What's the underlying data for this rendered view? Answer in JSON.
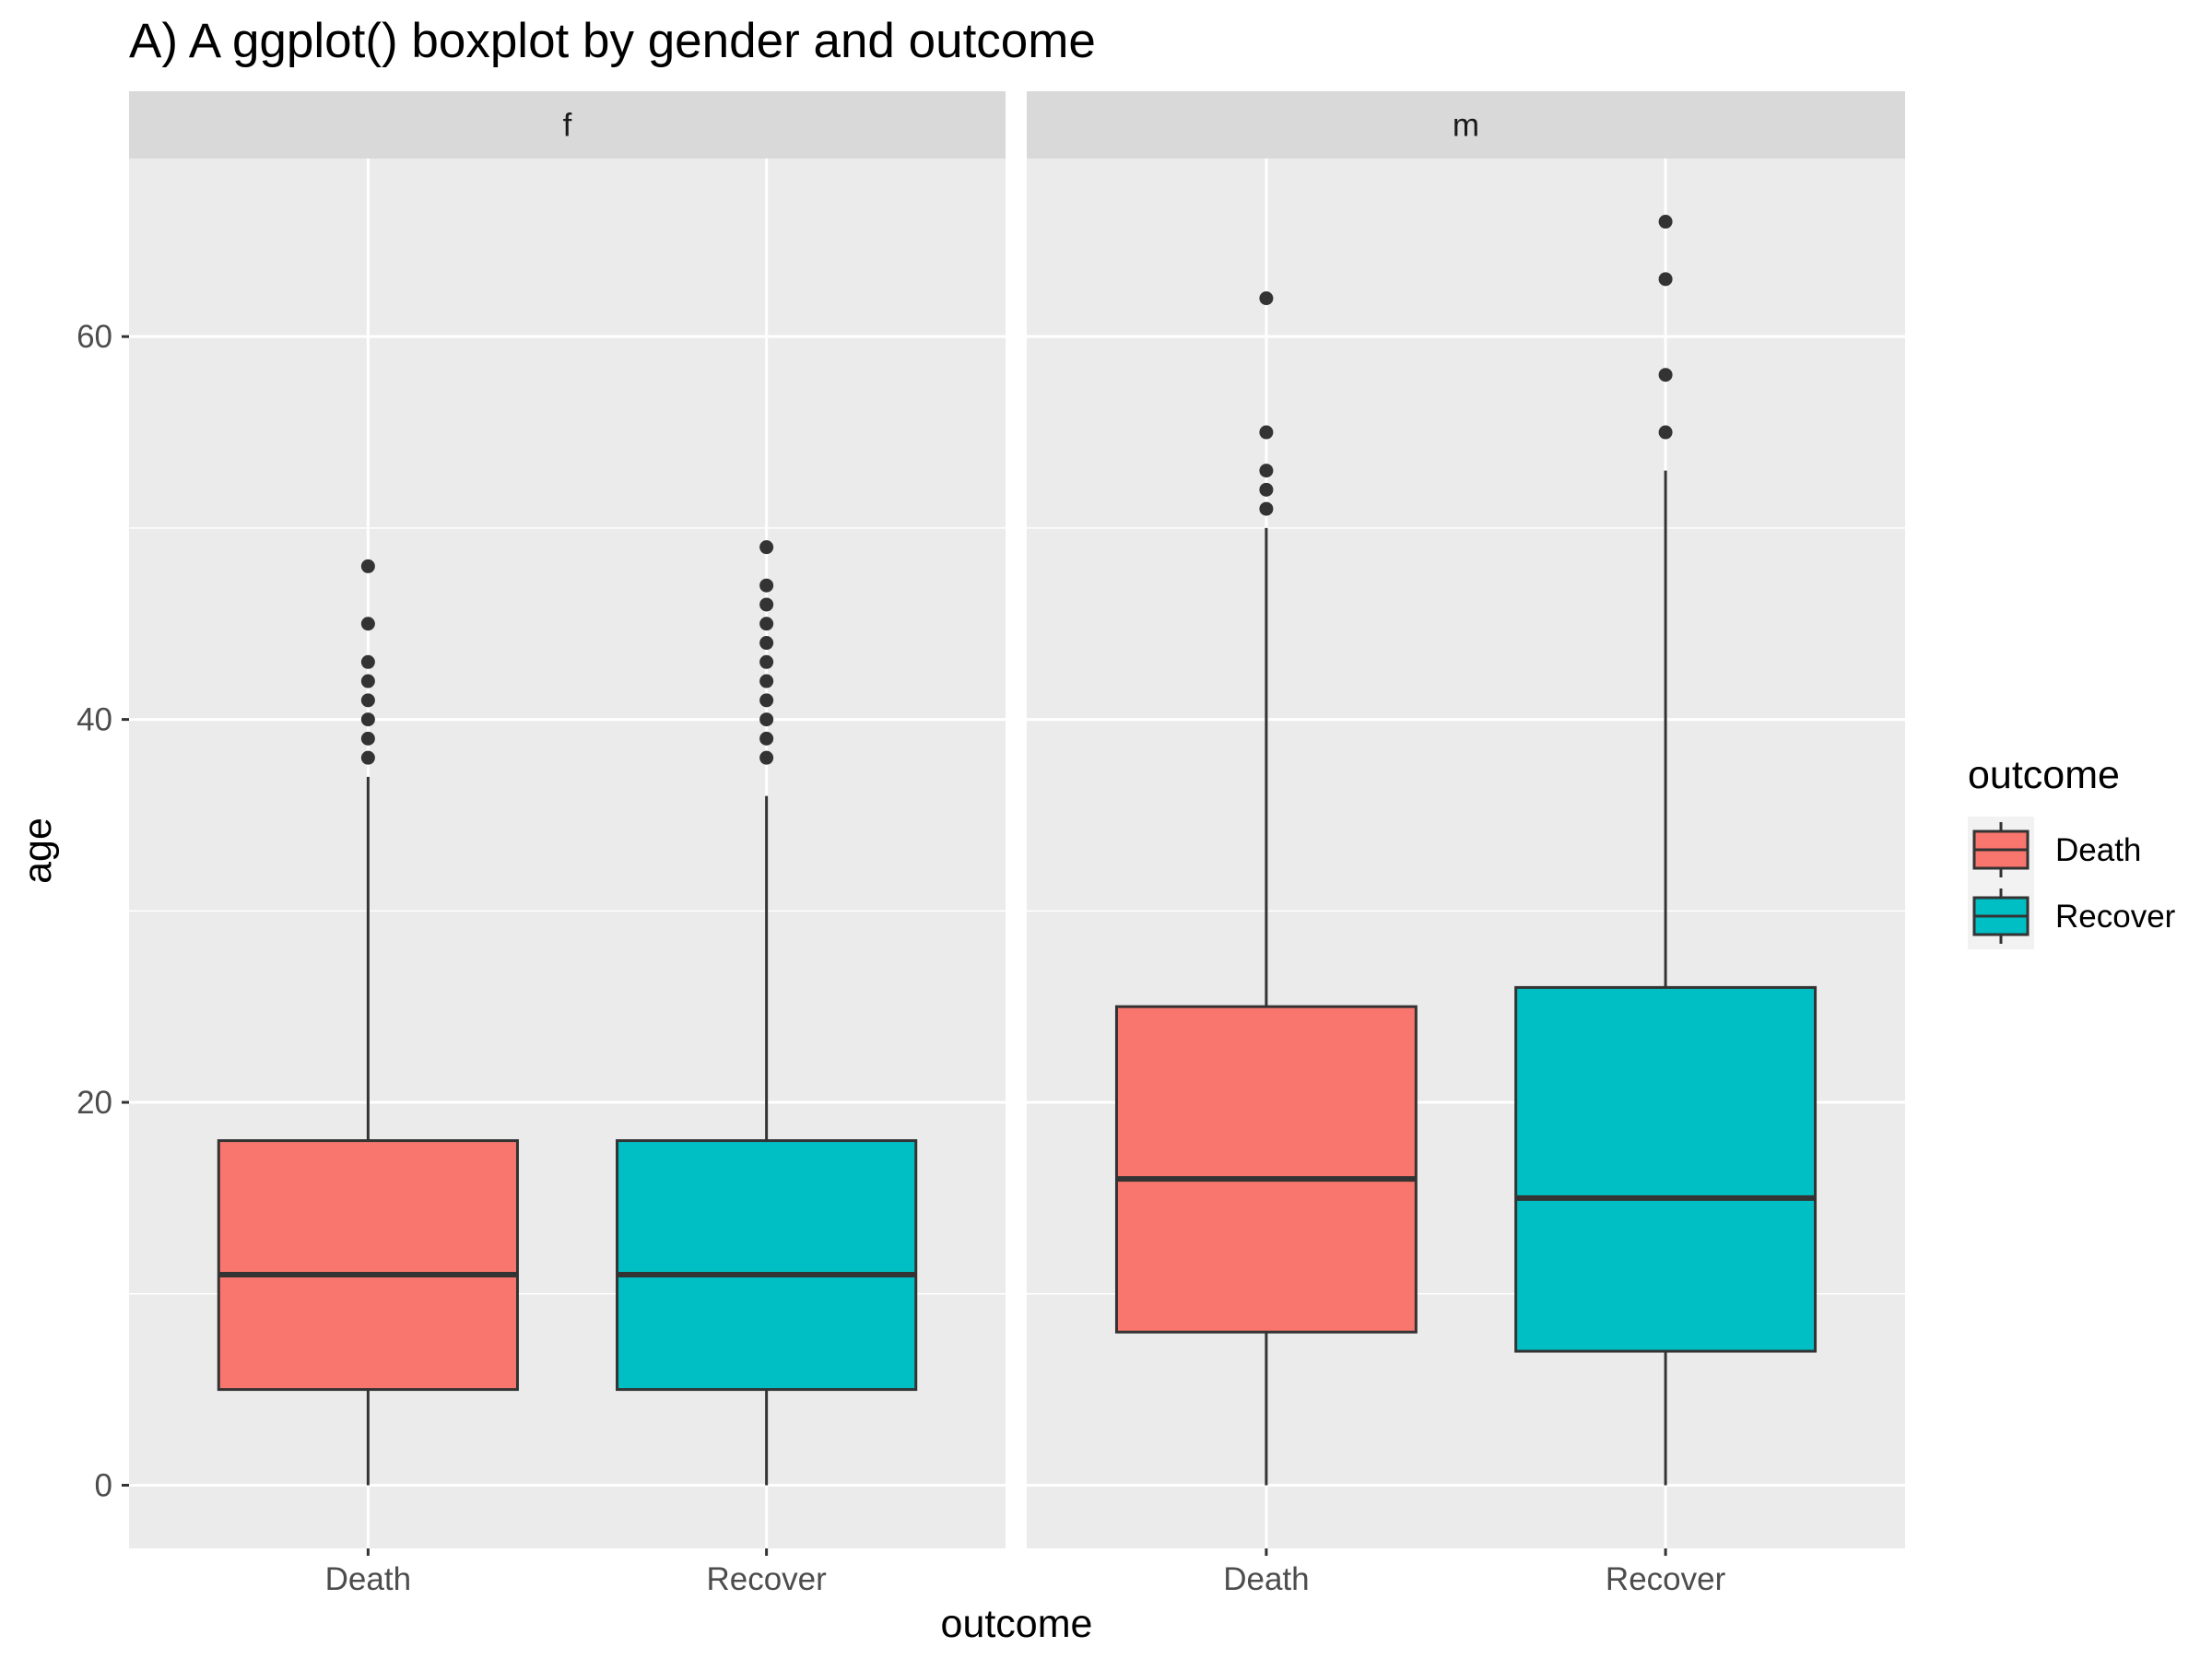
{
  "chart_data": {
    "type": "boxplot",
    "title": "A) A ggplot() boxplot by gender and outcome",
    "xlabel": "outcome",
    "ylabel": "age",
    "ylim": [
      -3.3,
      69.3
    ],
    "y_ticks": [
      0,
      20,
      40,
      60
    ],
    "y_tick_labels": [
      "0",
      "20",
      "40",
      "60"
    ],
    "categories": [
      "Death",
      "Recover"
    ],
    "facets": [
      "f",
      "m"
    ],
    "legend": {
      "title": "outcome",
      "position": "right",
      "entries": [
        {
          "label": "Death",
          "color": "#F8766D"
        },
        {
          "label": "Recover",
          "color": "#00BFC4"
        }
      ]
    },
    "boxes": [
      {
        "facet": "f",
        "category": "Death",
        "color": "#F8766D",
        "lower_whisker": 0,
        "q1": 5,
        "median": 11,
        "q3": 18,
        "upper_whisker": 37,
        "outliers": [
          38,
          39,
          40,
          41,
          42,
          43,
          45,
          48
        ]
      },
      {
        "facet": "f",
        "category": "Recover",
        "color": "#00BFC4",
        "lower_whisker": 0,
        "q1": 5,
        "median": 11,
        "q3": 18,
        "upper_whisker": 36,
        "outliers": [
          38,
          39,
          40,
          41,
          42,
          43,
          44,
          45,
          46,
          47,
          49
        ]
      },
      {
        "facet": "m",
        "category": "Death",
        "color": "#F8766D",
        "lower_whisker": 0,
        "q1": 8,
        "median": 16,
        "q3": 25,
        "upper_whisker": 50,
        "outliers": [
          51,
          52,
          53,
          55,
          62
        ]
      },
      {
        "facet": "m",
        "category": "Recover",
        "color": "#00BFC4",
        "lower_whisker": 0,
        "q1": 7,
        "median": 15,
        "q3": 26,
        "upper_whisker": 53,
        "outliers": [
          55,
          58,
          63,
          66
        ]
      }
    ],
    "grid": true,
    "panel_background": "#EBEBEB",
    "strip_background": "#D9D9D9"
  }
}
